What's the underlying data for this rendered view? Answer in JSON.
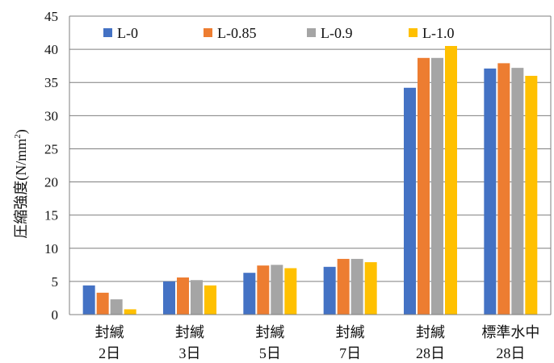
{
  "chart_data": {
    "type": "bar",
    "categories": [
      {
        "line1": "封緘",
        "line2": "2日"
      },
      {
        "line1": "封緘",
        "line2": "3日"
      },
      {
        "line1": "封緘",
        "line2": "5日"
      },
      {
        "line1": "封緘",
        "line2": "7日"
      },
      {
        "line1": "封緘",
        "line2": "28日"
      },
      {
        "line1": "標準水中",
        "line2": "28日"
      }
    ],
    "series": [
      {
        "name": "L-0",
        "color": "#4472C4",
        "values": [
          4.4,
          5.0,
          6.3,
          7.2,
          34.2,
          37.1
        ]
      },
      {
        "name": "L-0.85",
        "color": "#ED7D31",
        "values": [
          3.3,
          5.6,
          7.4,
          8.4,
          38.7,
          37.9
        ]
      },
      {
        "name": "L-0.9",
        "color": "#A5A5A5",
        "values": [
          2.3,
          5.2,
          7.5,
          8.4,
          38.7,
          37.2
        ]
      },
      {
        "name": "L-1.0",
        "color": "#FFC000",
        "values": [
          0.8,
          4.4,
          7.0,
          7.9,
          40.5,
          36.0
        ]
      }
    ],
    "ylabel_main": "圧縮強度(N/mm",
    "ylabel_sup": "2",
    "ylabel_close": ")",
    "ylim": [
      0,
      45
    ],
    "yticks": [
      0,
      5,
      10,
      15,
      20,
      25,
      30,
      35,
      40,
      45
    ],
    "grid": true,
    "legend_position": "top"
  }
}
